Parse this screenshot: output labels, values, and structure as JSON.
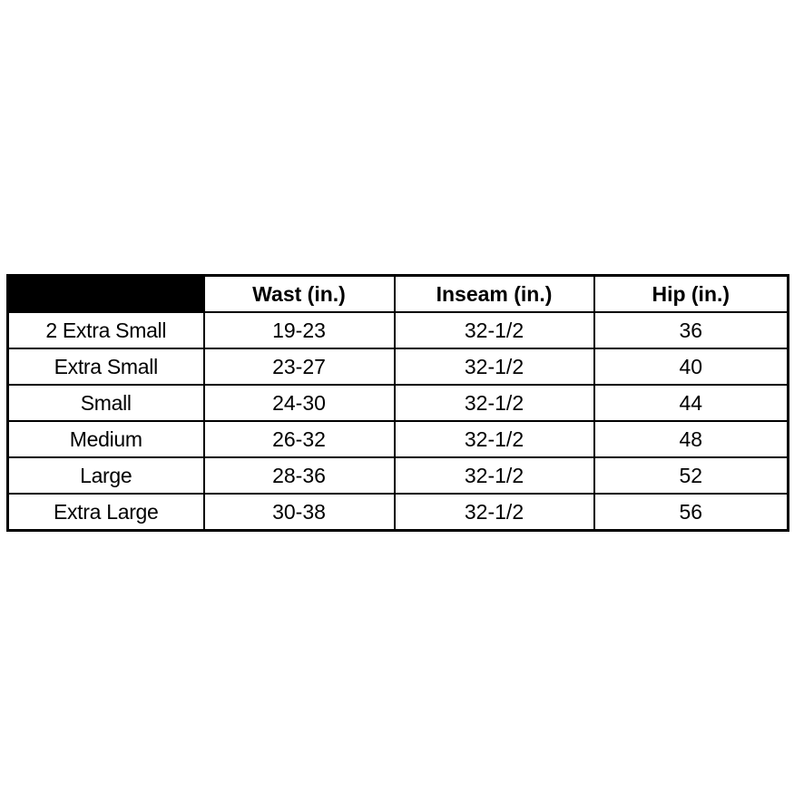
{
  "size_chart": {
    "header": {
      "corner_label": "",
      "waist": "Wast (in.)",
      "inseam": "Inseam (in.)",
      "hip": "Hip (in.)"
    },
    "rows": [
      {
        "size": "2 Extra Small",
        "waist": "19-23",
        "inseam": "32-1/2",
        "hip": "36"
      },
      {
        "size": "Extra Small",
        "waist": "23-27",
        "inseam": "32-1/2",
        "hip": "40"
      },
      {
        "size": "Small",
        "waist": "24-30",
        "inseam": "32-1/2",
        "hip": "44"
      },
      {
        "size": "Medium",
        "waist": "26-32",
        "inseam": "32-1/2",
        "hip": "48"
      },
      {
        "size": "Large",
        "waist": "28-36",
        "inseam": "32-1/2",
        "hip": "52"
      },
      {
        "size": "Extra Large",
        "waist": "30-38",
        "inseam": "32-1/2",
        "hip": "56"
      }
    ],
    "colors": {
      "background": "#ffffff",
      "border": "#000000",
      "text": "#000000",
      "corner_cell_background": "#000000"
    }
  },
  "chart_data": {
    "type": "table",
    "title": "",
    "columns": [
      "",
      "Wast (in.)",
      "Inseam (in.)",
      "Hip (in.)"
    ],
    "rows": [
      [
        "2 Extra Small",
        "19-23",
        "32-1/2",
        "36"
      ],
      [
        "Extra Small",
        "23-27",
        "32-1/2",
        "40"
      ],
      [
        "Small",
        "24-30",
        "32-1/2",
        "44"
      ],
      [
        "Medium",
        "26-32",
        "32-1/2",
        "48"
      ],
      [
        "Large",
        "28-36",
        "32-1/2",
        "52"
      ],
      [
        "Extra Large",
        "30-38",
        "32-1/2",
        "56"
      ]
    ]
  }
}
